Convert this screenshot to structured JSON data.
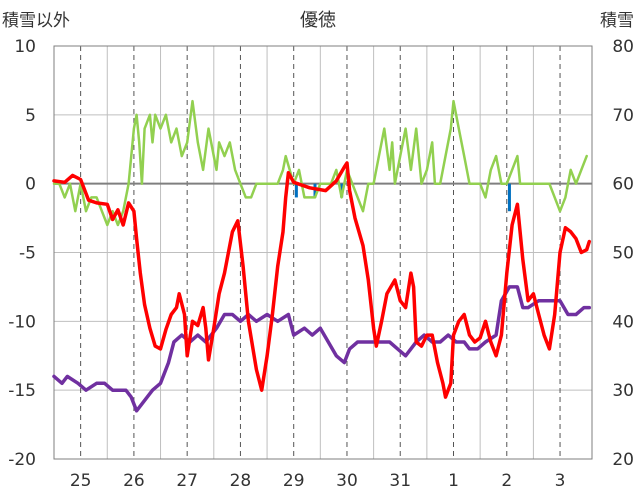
{
  "chart_data": {
    "type": "line",
    "title": "優徳",
    "y_left_label": "積雪以外",
    "y_right_label": "積雪",
    "y_left_range": [
      -20,
      10
    ],
    "y_right_range": [
      20,
      80
    ],
    "y_left_ticks": [
      "10",
      "5",
      "0",
      "-5",
      "-10",
      "-15",
      "-20"
    ],
    "y_right_ticks": [
      "80",
      "70",
      "60",
      "50",
      "40",
      "30",
      "20"
    ],
    "x_range": [
      24.5,
      34.6
    ],
    "x_labels": [
      {
        "x": 25,
        "label": "25"
      },
      {
        "x": 26,
        "label": "26"
      },
      {
        "x": 27,
        "label": "27"
      },
      {
        "x": 28,
        "label": "28"
      },
      {
        "x": 29,
        "label": "29"
      },
      {
        "x": 30,
        "label": "30"
      },
      {
        "x": 31,
        "label": "31"
      },
      {
        "x": 32,
        "label": "1"
      },
      {
        "x": 33,
        "label": "2"
      },
      {
        "x": 34,
        "label": "3"
      }
    ],
    "day_boundaries": [
      25.5,
      26.5,
      27.5,
      28.5,
      29.5,
      30.5,
      31.5,
      32.5,
      33.5
    ],
    "colors": {
      "temperature": "#ff0000",
      "wind": "#92d050",
      "precipitation": "#0070c0",
      "snow": "#7030a0"
    },
    "grid": "dashed-vertical-at-day-centers, solid-vertical-at-day-boundaries, horizontal",
    "series": [
      {
        "key": "temperature",
        "axis": "left",
        "points": [
          [
            24.5,
            0.2
          ],
          [
            24.7,
            0.1
          ],
          [
            24.85,
            0.6
          ],
          [
            25.0,
            0.3
          ],
          [
            25.15,
            -1.2
          ],
          [
            25.3,
            -1.4
          ],
          [
            25.5,
            -1.5
          ],
          [
            25.6,
            -2.6
          ],
          [
            25.7,
            -1.9
          ],
          [
            25.8,
            -3.0
          ],
          [
            25.9,
            -1.4
          ],
          [
            26.0,
            -2.0
          ],
          [
            26.05,
            -4.0
          ],
          [
            26.12,
            -6.5
          ],
          [
            26.2,
            -8.8
          ],
          [
            26.3,
            -10.5
          ],
          [
            26.4,
            -11.8
          ],
          [
            26.5,
            -12.0
          ],
          [
            26.6,
            -10.6
          ],
          [
            26.7,
            -9.5
          ],
          [
            26.8,
            -9.0
          ],
          [
            26.85,
            -8.0
          ],
          [
            26.95,
            -9.5
          ],
          [
            27.0,
            -12.5
          ],
          [
            27.1,
            -10.0
          ],
          [
            27.2,
            -10.3
          ],
          [
            27.3,
            -9.0
          ],
          [
            27.35,
            -10.5
          ],
          [
            27.4,
            -12.8
          ],
          [
            27.5,
            -10.5
          ],
          [
            27.6,
            -8.0
          ],
          [
            27.7,
            -6.5
          ],
          [
            27.75,
            -5.5
          ],
          [
            27.85,
            -3.5
          ],
          [
            27.95,
            -2.7
          ],
          [
            28.05,
            -6.0
          ],
          [
            28.15,
            -10.0
          ],
          [
            28.3,
            -13.5
          ],
          [
            28.4,
            -15.0
          ],
          [
            28.5,
            -12.5
          ],
          [
            28.6,
            -9.5
          ],
          [
            28.7,
            -6.0
          ],
          [
            28.8,
            -3.5
          ],
          [
            28.85,
            -1.0
          ],
          [
            28.9,
            0.8
          ],
          [
            29.0,
            0.1
          ],
          [
            29.3,
            -0.3
          ],
          [
            29.6,
            -0.5
          ],
          [
            29.8,
            0.2
          ],
          [
            29.95,
            1.2
          ],
          [
            30.0,
            1.5
          ],
          [
            30.05,
            -0.5
          ],
          [
            30.15,
            -2.5
          ],
          [
            30.3,
            -4.5
          ],
          [
            30.4,
            -7.0
          ],
          [
            30.5,
            -10.5
          ],
          [
            30.55,
            -11.8
          ],
          [
            30.65,
            -10.0
          ],
          [
            30.75,
            -8.0
          ],
          [
            30.9,
            -7.0
          ],
          [
            31.0,
            -8.5
          ],
          [
            31.1,
            -9.0
          ],
          [
            31.2,
            -6.5
          ],
          [
            31.25,
            -7.5
          ],
          [
            31.3,
            -11.5
          ],
          [
            31.4,
            -11.8
          ],
          [
            31.5,
            -11.0
          ],
          [
            31.6,
            -11.0
          ],
          [
            31.7,
            -13.0
          ],
          [
            31.8,
            -14.5
          ],
          [
            31.85,
            -15.5
          ],
          [
            31.95,
            -14.5
          ],
          [
            32.0,
            -11.0
          ],
          [
            32.1,
            -10.0
          ],
          [
            32.2,
            -9.5
          ],
          [
            32.3,
            -11.0
          ],
          [
            32.4,
            -11.5
          ],
          [
            32.5,
            -11.2
          ],
          [
            32.6,
            -10.0
          ],
          [
            32.7,
            -11.5
          ],
          [
            32.8,
            -12.5
          ],
          [
            32.9,
            -11.0
          ],
          [
            33.0,
            -6.5
          ],
          [
            33.1,
            -3.0
          ],
          [
            33.2,
            -1.5
          ],
          [
            33.3,
            -5.5
          ],
          [
            33.4,
            -8.5
          ],
          [
            33.5,
            -8.0
          ],
          [
            33.6,
            -9.5
          ],
          [
            33.7,
            -11.0
          ],
          [
            33.8,
            -12.0
          ],
          [
            33.9,
            -9.5
          ],
          [
            34.0,
            -5.0
          ],
          [
            34.1,
            -3.2
          ],
          [
            34.2,
            -3.5
          ],
          [
            34.3,
            -4.0
          ],
          [
            34.4,
            -5.0
          ],
          [
            34.5,
            -4.8
          ],
          [
            34.55,
            -4.2
          ]
        ]
      },
      {
        "key": "wind",
        "axis": "left",
        "points": [
          [
            24.5,
            0.0
          ],
          [
            24.6,
            0.0
          ],
          [
            24.7,
            -1.0
          ],
          [
            24.8,
            0.0
          ],
          [
            24.9,
            -2.0
          ],
          [
            25.0,
            0.0
          ],
          [
            25.1,
            -2.0
          ],
          [
            25.2,
            -1.0
          ],
          [
            25.3,
            -1.0
          ],
          [
            25.4,
            -2.0
          ],
          [
            25.5,
            -3.0
          ],
          [
            25.6,
            -2.0
          ],
          [
            25.7,
            -3.0
          ],
          [
            25.8,
            -2.0
          ],
          [
            25.9,
            0.0
          ],
          [
            26.0,
            4.0
          ],
          [
            26.05,
            5.0
          ],
          [
            26.1,
            3.0
          ],
          [
            26.15,
            0.0
          ],
          [
            26.2,
            4.0
          ],
          [
            26.3,
            5.0
          ],
          [
            26.35,
            3.0
          ],
          [
            26.4,
            5.0
          ],
          [
            26.5,
            4.0
          ],
          [
            26.6,
            5.0
          ],
          [
            26.7,
            3.0
          ],
          [
            26.8,
            4.0
          ],
          [
            26.9,
            2.0
          ],
          [
            27.0,
            3.0
          ],
          [
            27.1,
            6.0
          ],
          [
            27.2,
            3.0
          ],
          [
            27.3,
            1.0
          ],
          [
            27.4,
            4.0
          ],
          [
            27.5,
            2.0
          ],
          [
            27.55,
            1.0
          ],
          [
            27.6,
            3.0
          ],
          [
            27.7,
            2.0
          ],
          [
            27.8,
            3.0
          ],
          [
            27.9,
            1.0
          ],
          [
            28.0,
            0.0
          ],
          [
            28.1,
            -1.0
          ],
          [
            28.2,
            -1.0
          ],
          [
            28.3,
            0.0
          ],
          [
            28.5,
            0.0
          ],
          [
            28.7,
            0.0
          ],
          [
            28.8,
            1.0
          ],
          [
            28.85,
            2.0
          ],
          [
            29.0,
            0.0
          ],
          [
            29.1,
            1.0
          ],
          [
            29.2,
            -1.0
          ],
          [
            29.4,
            -1.0
          ],
          [
            29.5,
            0.0
          ],
          [
            29.7,
            0.0
          ],
          [
            29.8,
            1.0
          ],
          [
            29.9,
            -1.0
          ],
          [
            30.0,
            1.0
          ],
          [
            30.1,
            0.0
          ],
          [
            30.3,
            -2.0
          ],
          [
            30.4,
            0.0
          ],
          [
            30.5,
            0.0
          ],
          [
            30.6,
            2.0
          ],
          [
            30.7,
            4.0
          ],
          [
            30.8,
            1.0
          ],
          [
            30.85,
            3.0
          ],
          [
            30.9,
            0.0
          ],
          [
            31.0,
            2.0
          ],
          [
            31.1,
            4.0
          ],
          [
            31.2,
            1.0
          ],
          [
            31.3,
            4.0
          ],
          [
            31.4,
            0.0
          ],
          [
            31.5,
            1.0
          ],
          [
            31.6,
            3.0
          ],
          [
            31.65,
            0.0
          ],
          [
            31.75,
            0.0
          ],
          [
            31.85,
            2.0
          ],
          [
            31.95,
            4.0
          ],
          [
            32.0,
            6.0
          ],
          [
            32.1,
            4.0
          ],
          [
            32.2,
            2.0
          ],
          [
            32.3,
            0.0
          ],
          [
            32.5,
            0.0
          ],
          [
            32.6,
            -1.0
          ],
          [
            32.7,
            1.0
          ],
          [
            32.8,
            2.0
          ],
          [
            32.9,
            0.0
          ],
          [
            33.0,
            0.0
          ],
          [
            33.1,
            1.0
          ],
          [
            33.2,
            2.0
          ],
          [
            33.25,
            0.0
          ],
          [
            33.4,
            0.0
          ],
          [
            33.8,
            0.0
          ],
          [
            34.0,
            -2.0
          ],
          [
            34.1,
            -1.0
          ],
          [
            34.2,
            1.0
          ],
          [
            34.3,
            0.0
          ],
          [
            34.4,
            1.0
          ],
          [
            34.5,
            2.0
          ]
        ]
      },
      {
        "key": "precipitation",
        "axis": "left",
        "bars": [
          [
            29.05,
            -1.0
          ],
          [
            29.4,
            -1.0
          ],
          [
            29.9,
            -1.0
          ],
          [
            33.05,
            -2.0
          ]
        ]
      },
      {
        "key": "snow",
        "axis": "right",
        "points": [
          [
            24.5,
            32.0
          ],
          [
            24.65,
            31.0
          ],
          [
            24.75,
            32.0
          ],
          [
            24.95,
            31.0
          ],
          [
            25.1,
            30.0
          ],
          [
            25.3,
            31.0
          ],
          [
            25.45,
            31.0
          ],
          [
            25.6,
            30.0
          ],
          [
            25.85,
            30.0
          ],
          [
            25.95,
            29.0
          ],
          [
            26.05,
            27.0
          ],
          [
            26.15,
            28.0
          ],
          [
            26.25,
            29.0
          ],
          [
            26.35,
            30.0
          ],
          [
            26.5,
            31.0
          ],
          [
            26.65,
            34.0
          ],
          [
            26.75,
            37.0
          ],
          [
            26.9,
            38.0
          ],
          [
            27.05,
            37.0
          ],
          [
            27.2,
            38.0
          ],
          [
            27.35,
            37.0
          ],
          [
            27.55,
            39.0
          ],
          [
            27.7,
            41.0
          ],
          [
            27.85,
            41.0
          ],
          [
            28.0,
            40.0
          ],
          [
            28.15,
            41.0
          ],
          [
            28.3,
            40.0
          ],
          [
            28.5,
            41.0
          ],
          [
            28.7,
            40.0
          ],
          [
            28.9,
            41.0
          ],
          [
            29.0,
            38.0
          ],
          [
            29.2,
            39.0
          ],
          [
            29.35,
            38.0
          ],
          [
            29.5,
            39.0
          ],
          [
            29.65,
            37.0
          ],
          [
            29.8,
            35.0
          ],
          [
            29.95,
            34.0
          ],
          [
            30.05,
            36.0
          ],
          [
            30.2,
            37.0
          ],
          [
            30.4,
            37.0
          ],
          [
            30.6,
            37.0
          ],
          [
            30.8,
            37.0
          ],
          [
            30.95,
            36.0
          ],
          [
            31.1,
            35.0
          ],
          [
            31.3,
            37.0
          ],
          [
            31.45,
            38.0
          ],
          [
            31.6,
            37.0
          ],
          [
            31.75,
            37.0
          ],
          [
            31.9,
            38.0
          ],
          [
            32.05,
            37.0
          ],
          [
            32.2,
            37.0
          ],
          [
            32.3,
            36.0
          ],
          [
            32.45,
            36.0
          ],
          [
            32.6,
            37.0
          ],
          [
            32.8,
            38.0
          ],
          [
            32.9,
            43.0
          ],
          [
            33.05,
            45.0
          ],
          [
            33.2,
            45.0
          ],
          [
            33.3,
            42.0
          ],
          [
            33.4,
            42.0
          ],
          [
            33.6,
            43.0
          ],
          [
            33.8,
            43.0
          ],
          [
            34.0,
            43.0
          ],
          [
            34.15,
            41.0
          ],
          [
            34.3,
            41.0
          ],
          [
            34.45,
            42.0
          ],
          [
            34.55,
            42.0
          ]
        ]
      }
    ]
  }
}
